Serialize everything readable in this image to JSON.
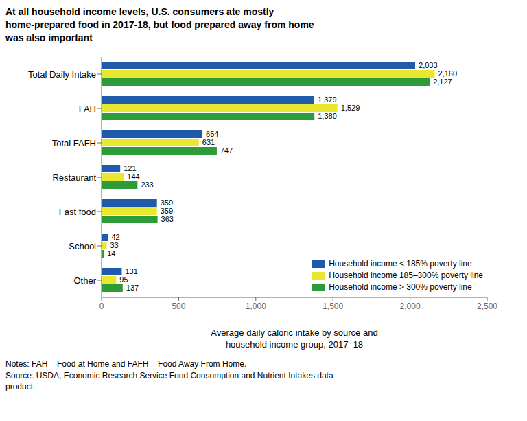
{
  "chart_data": {
    "type": "bar",
    "orientation": "horizontal",
    "title": "At all household income levels, U.S. consumers ate mostly\nhome-prepared food in 2017-18, but food prepared away from home\nwas also important",
    "x_label": "Average daily caloric intake by source and\nhousehold income group, 2017–18",
    "annotations": [
      "Notes: FAH = Food at Home and FAFH = Food Away From Home.\nSource: USDA, Economic Research Service Food Consumption and Nutrient Intakes data\nproduct."
    ],
    "categories": [
      "Total Daily Intake",
      "FAH",
      "Total FAFH",
      "Restaurant",
      "Fast food",
      "School",
      "Other"
    ],
    "series": [
      {
        "name": "Household income < 185% poverty line",
        "color": "#1F5BAA",
        "values": [
          2033,
          1379,
          654,
          121,
          359,
          42,
          131
        ],
        "value_labels": [
          "2,033",
          "1,379",
          "654",
          "121",
          "359",
          "42",
          "131"
        ]
      },
      {
        "name": "Household income 185–300% poverty line",
        "color": "#E8E830",
        "values": [
          2160,
          1529,
          631,
          144,
          359,
          33,
          95
        ],
        "value_labels": [
          "2,160",
          "1,529",
          "631",
          "144",
          "359",
          "33",
          "95"
        ]
      },
      {
        "name": "Household income > 300% poverty line",
        "color": "#2E9B39",
        "values": [
          2127,
          1380,
          747,
          233,
          363,
          14,
          137
        ],
        "value_labels": [
          "2,127",
          "1,380",
          "747",
          "233",
          "363",
          "14",
          "137"
        ]
      }
    ],
    "xlim": [
      0,
      2500
    ],
    "xticks": [
      0,
      500,
      {
        "value": 1000,
        "label": "1,000"
      },
      {
        "value": 1500,
        "label": "1,500"
      },
      {
        "value": 2000,
        "label": "2,000"
      },
      {
        "value": 2500,
        "label": "2,500"
      }
    ],
    "data_labels": true,
    "legend": "lower right",
    "grid": false
  }
}
